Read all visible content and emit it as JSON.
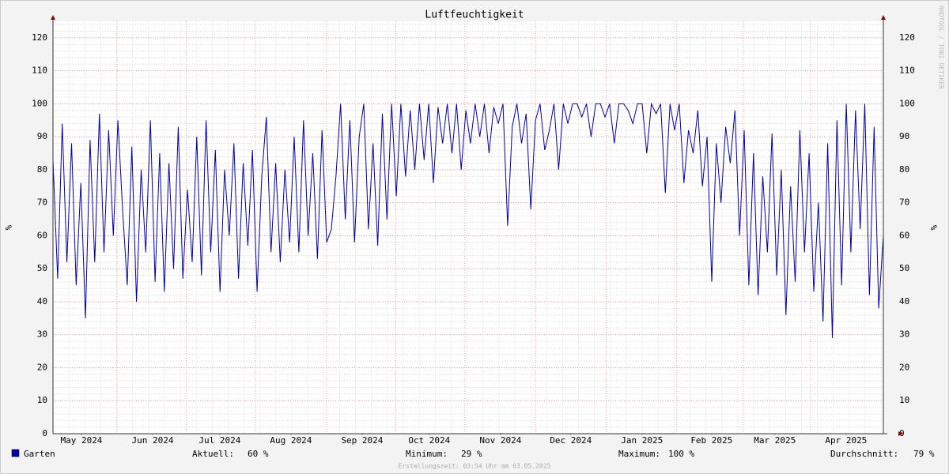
{
  "chart_data": {
    "type": "line",
    "title": "Luftfeuchtigkeit",
    "ylabel": "%",
    "watermark": "RRDTOOL / TOBI OETIKER",
    "xlim": [
      0,
      365
    ],
    "xticks": [
      {
        "value": 12.5,
        "label": "May 2024"
      },
      {
        "value": 43.8,
        "label": "Jun 2024"
      },
      {
        "value": 73.3,
        "label": "Jul 2024"
      },
      {
        "value": 104.6,
        "label": "Aug 2024"
      },
      {
        "value": 135.9,
        "label": "Sep 2024"
      },
      {
        "value": 165.4,
        "label": "Oct 2024"
      },
      {
        "value": 196.7,
        "label": "Nov 2024"
      },
      {
        "value": 227.6,
        "label": "Dec 2024"
      },
      {
        "value": 258.9,
        "label": "Jan 2025"
      },
      {
        "value": 289.5,
        "label": "Feb 2025"
      },
      {
        "value": 317.3,
        "label": "Mar 2025"
      },
      {
        "value": 348.6,
        "label": "Apr 2025"
      }
    ],
    "ylim": [
      0,
      125
    ],
    "yticks": [
      0,
      10,
      20,
      30,
      40,
      50,
      60,
      70,
      80,
      90,
      100,
      110,
      120
    ],
    "grid": true,
    "series": [
      {
        "name": "Garten",
        "color": "#0000aa",
        "values": [
          83,
          47,
          94,
          52,
          88,
          45,
          76,
          35,
          89,
          52,
          97,
          55,
          92,
          60,
          95,
          68,
          45,
          87,
          40,
          80,
          55,
          95,
          46,
          85,
          43,
          82,
          50,
          93,
          47,
          74,
          52,
          90,
          48,
          95,
          55,
          86,
          43,
          80,
          60,
          88,
          47,
          82,
          57,
          86,
          43,
          78,
          96,
          55,
          82,
          52,
          80,
          58,
          90,
          55,
          95,
          60,
          85,
          53,
          92,
          58,
          62,
          78,
          100,
          65,
          95,
          58,
          90,
          100,
          62,
          88,
          57,
          97,
          65,
          100,
          72,
          100,
          78,
          98,
          80,
          100,
          83,
          100,
          76,
          99,
          88,
          100,
          85,
          100,
          80,
          98,
          88,
          100,
          90,
          100,
          85,
          99,
          94,
          100,
          63,
          93,
          100,
          88,
          97,
          68,
          95,
          100,
          86,
          92,
          100,
          80,
          100,
          94,
          100,
          100,
          96,
          100,
          90,
          100,
          100,
          96,
          100,
          88,
          100,
          100,
          98,
          94,
          100,
          100,
          85,
          100,
          97,
          100,
          73,
          100,
          92,
          100,
          76,
          92,
          85,
          98,
          75,
          90,
          46,
          88,
          70,
          93,
          82,
          98,
          60,
          92,
          45,
          85,
          42,
          78,
          55,
          91,
          48,
          80,
          36,
          75,
          46,
          92,
          55,
          85,
          43,
          70,
          34,
          88,
          29,
          95,
          45,
          100,
          55,
          98,
          62,
          100,
          42,
          93,
          38,
          60
        ]
      }
    ],
    "stats": [
      {
        "label": "Aktuell:",
        "value_label": "60 %"
      },
      {
        "label": "Minimum:",
        "value_label": "29 %"
      },
      {
        "label": "Maximum:",
        "value_label": "100 %"
      },
      {
        "label": "Durchschnitt:",
        "value_label": "79 %"
      }
    ],
    "footer": "Erstellungszeit: 03:54 Uhr am 03.05.2025"
  }
}
